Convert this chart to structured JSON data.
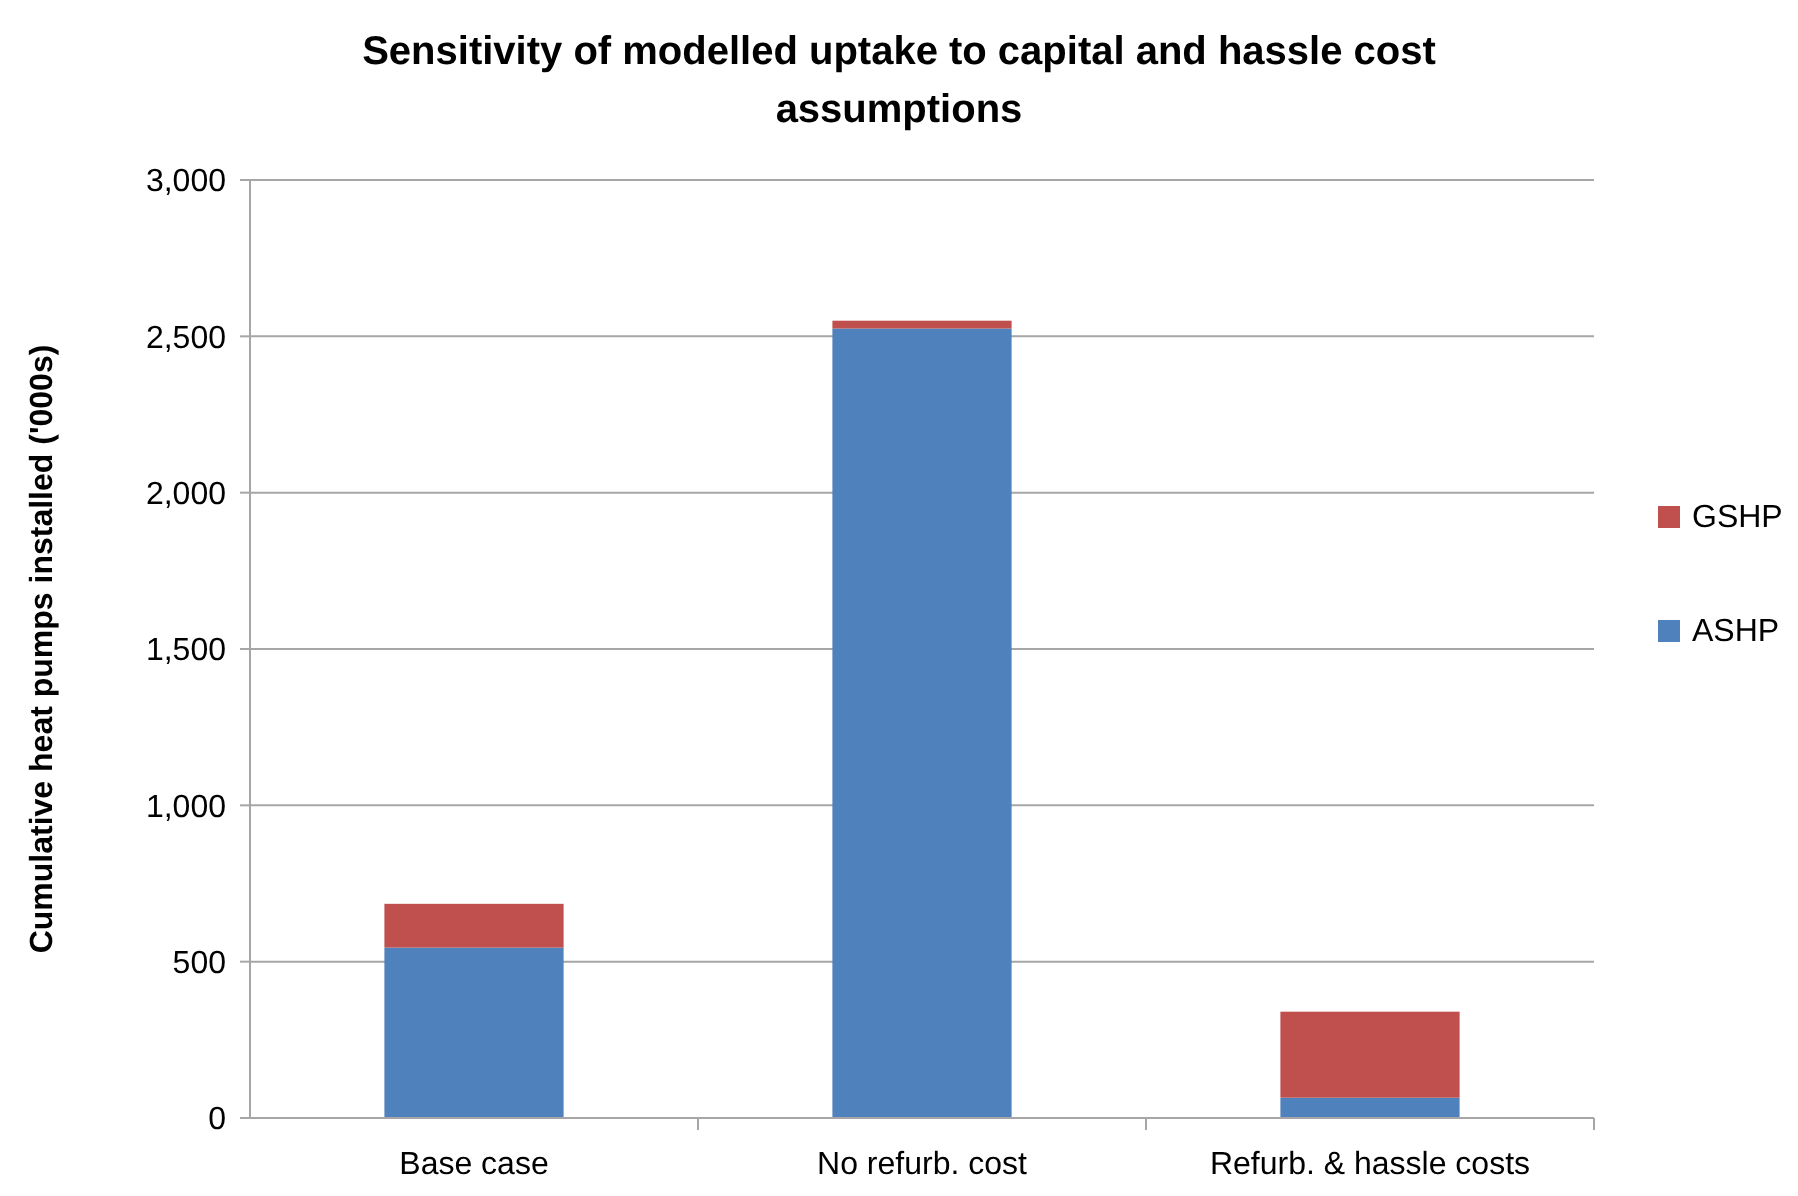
{
  "chart_data": {
    "type": "bar",
    "title": "Sensitivity of modelled uptake to capital and hassle cost assumptions",
    "ylabel": "Cumulative heat pumps installed ('000s)",
    "categories": [
      "Base case",
      "No refurb. cost",
      "Refurb. & hassle costs"
    ],
    "stacked": true,
    "series": [
      {
        "name": "ASHP",
        "color": "#4f81bd",
        "values": [
          545,
          2525,
          65
        ]
      },
      {
        "name": "GSHP",
        "color": "#c0504d",
        "values": [
          140,
          25,
          275
        ]
      }
    ],
    "ylim": [
      0,
      3000
    ],
    "yticks": [
      {
        "value": 0,
        "label": "0"
      },
      {
        "value": 500,
        "label": "500"
      },
      {
        "value": 1000,
        "label": "1,000"
      },
      {
        "value": 1500,
        "label": "1,500"
      },
      {
        "value": 2000,
        "label": "2,000"
      },
      {
        "value": 2500,
        "label": "2,500"
      },
      {
        "value": 3000,
        "label": "3,000"
      }
    ],
    "grid": "y",
    "legend": "right"
  }
}
